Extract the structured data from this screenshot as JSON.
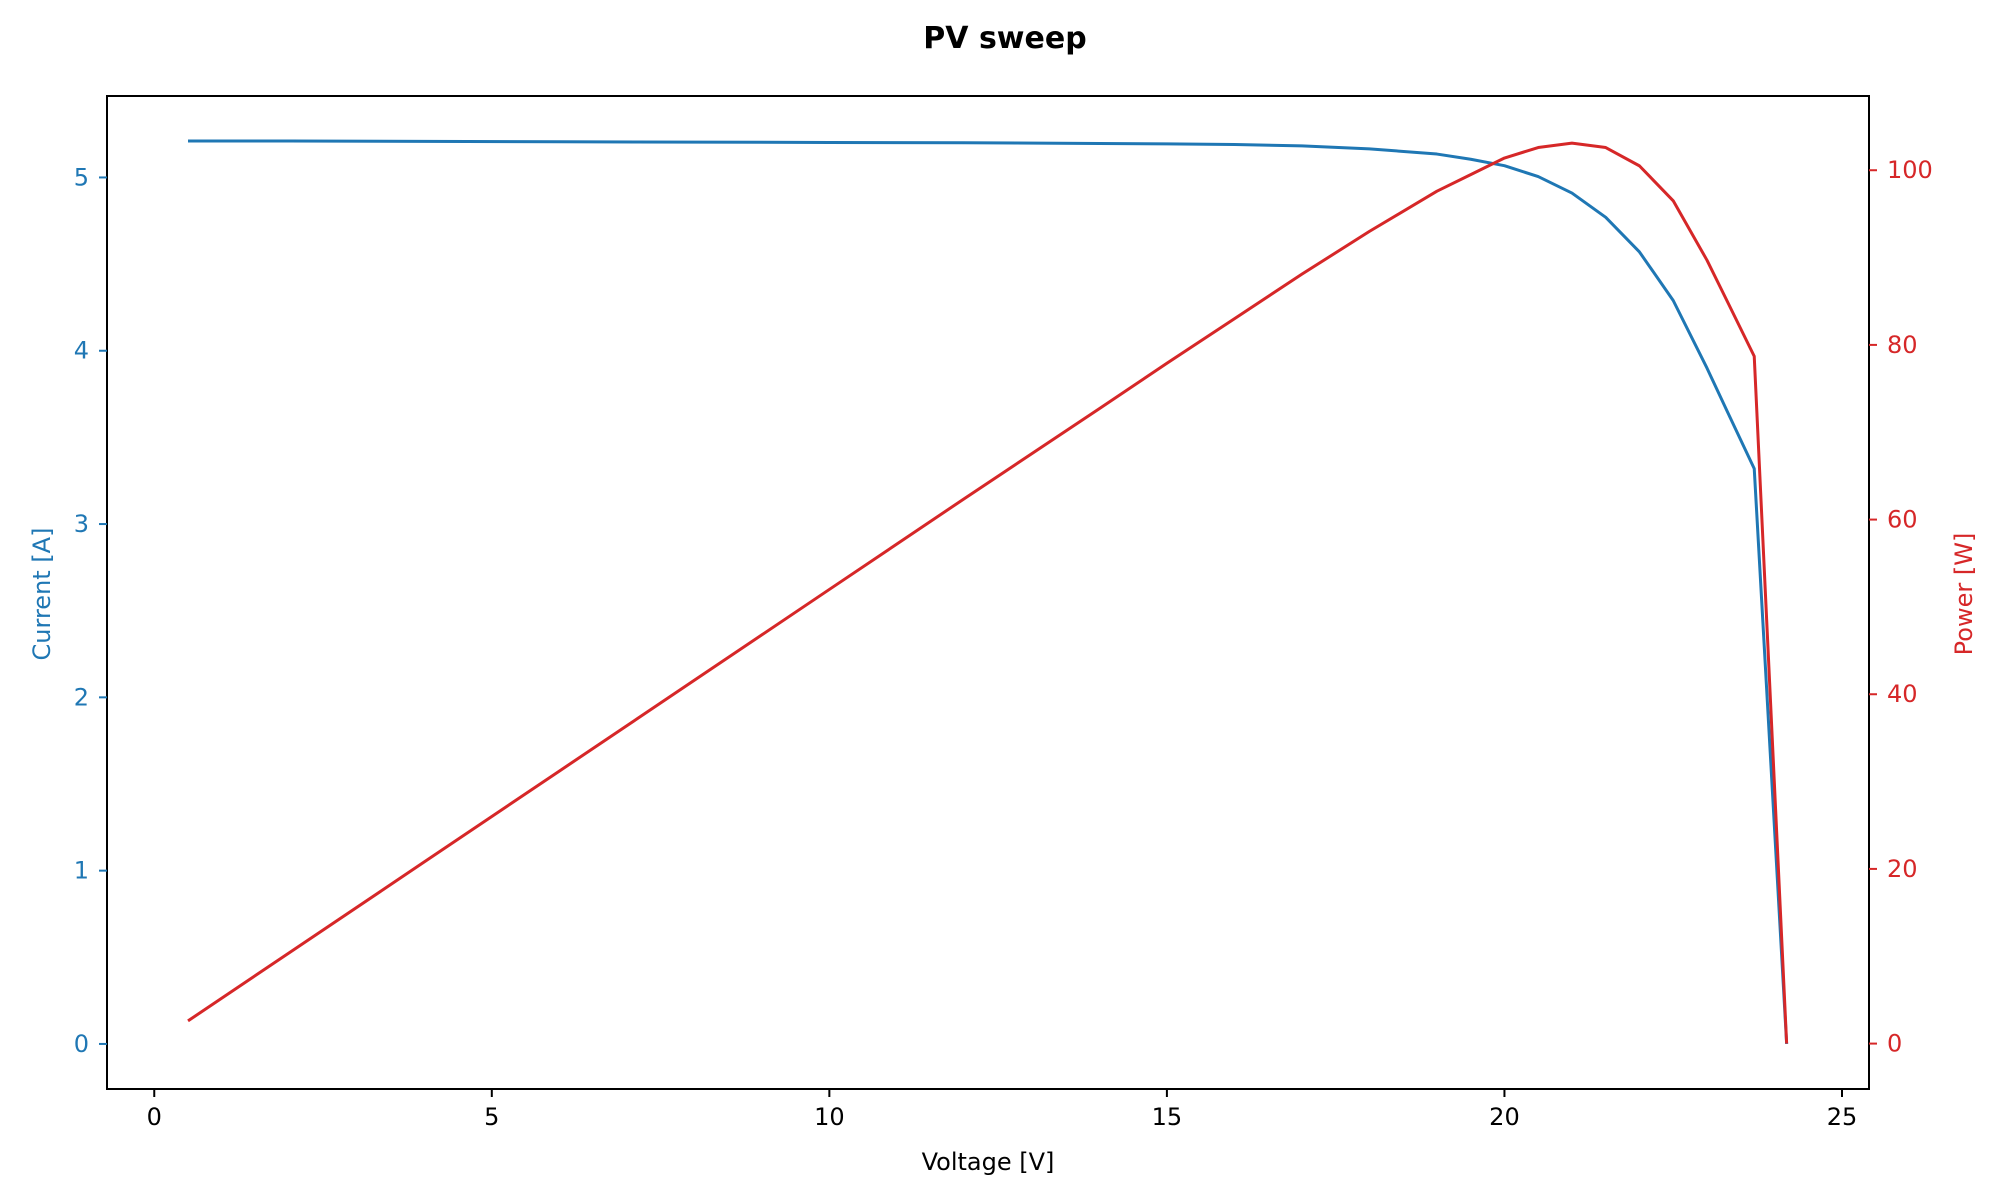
{
  "chart_data": {
    "type": "line",
    "title": "PV sweep",
    "xlabel": "Voltage [V]",
    "ylabel_left": "Current [A]",
    "ylabel_right": "Power [W]",
    "xlim": [
      -0.7,
      25.4
    ],
    "ylim_left": [
      -0.26,
      5.47
    ],
    "ylim_right": [
      -5.2,
      108.5
    ],
    "x_ticks": [
      0,
      5,
      10,
      15,
      20,
      25
    ],
    "y_left_ticks": [
      0,
      1,
      2,
      3,
      4,
      5
    ],
    "y_right_ticks": [
      0,
      20,
      40,
      60,
      80,
      100
    ],
    "grid": false,
    "legend": "none",
    "colors": {
      "current": "#1f77b4",
      "power": "#d62728",
      "axis": "#000000"
    },
    "series": [
      {
        "axis": "left",
        "color": "#1f77b4",
        "x": [
          0.5,
          2,
          4,
          6,
          8,
          10,
          12,
          14,
          15,
          16,
          17,
          18,
          19,
          19.5,
          20,
          20.5,
          21,
          21.5,
          22,
          22.5,
          23,
          23.3,
          23.7,
          24.18
        ],
        "y": [
          5.21,
          5.21,
          5.208,
          5.206,
          5.204,
          5.202,
          5.2,
          5.196,
          5.194,
          5.19,
          5.182,
          5.165,
          5.135,
          5.105,
          5.068,
          5.005,
          4.91,
          4.77,
          4.57,
          4.29,
          3.9,
          3.65,
          3.32,
          0.0
        ]
      },
      {
        "axis": "right",
        "color": "#d62728",
        "x": [
          0.5,
          2,
          4,
          6,
          8,
          10,
          12,
          14,
          15,
          16,
          17,
          18,
          19,
          19.5,
          20,
          20.5,
          21,
          21.5,
          22,
          22.5,
          23,
          23.3,
          23.7,
          24.18
        ],
        "y": [
          2.6,
          10.4,
          20.8,
          31.2,
          41.6,
          52.0,
          62.4,
          72.7,
          77.9,
          83.0,
          88.1,
          93.0,
          97.6,
          99.5,
          101.4,
          102.6,
          103.1,
          102.6,
          100.5,
          96.5,
          89.7,
          85.0,
          78.7,
          0.0
        ]
      }
    ]
  }
}
